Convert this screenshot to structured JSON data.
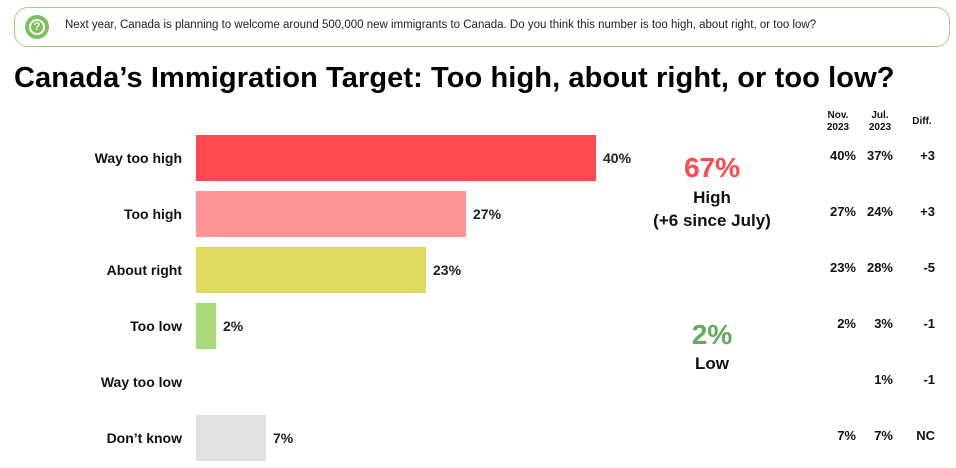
{
  "question": {
    "icon": "question-icon",
    "text": "Next year, Canada is planning to welcome around 500,000 new immigrants to Canada. Do you think this number is too high, about right, or too low?"
  },
  "chart_data": {
    "type": "bar",
    "orientation": "horizontal",
    "title": "Canada’s Immigration Target: Too high, about right, or too low?",
    "categories": [
      "Way too high",
      "Too high",
      "About right",
      "Too low",
      "Way too low",
      "Don’t know"
    ],
    "values": [
      40,
      27,
      23,
      2,
      null,
      7
    ],
    "value_labels": [
      "40%",
      "27%",
      "23%",
      "2%",
      "",
      "7%"
    ],
    "colors": [
      "#ff4b4f",
      "#ff9494",
      "#dcdb5f",
      "#a8d97a",
      "#ffffff",
      "#e0e2e1"
    ],
    "xlim": [
      0,
      100
    ]
  },
  "summary": {
    "high": {
      "value": "67%",
      "label": "High",
      "note": "(+6 since July)",
      "color": "#ff4b4f"
    },
    "low": {
      "value": "2%",
      "label": "Low",
      "color": "#5fac5c"
    }
  },
  "table": {
    "headers": [
      {
        "line1": "Nov.",
        "line2": "2023"
      },
      {
        "line1": "Jul.",
        "line2": "2023"
      },
      {
        "line1": "Diff.",
        "line2": ""
      }
    ],
    "rows": [
      [
        "40%",
        "37%",
        "+3"
      ],
      [
        "27%",
        "24%",
        "+3"
      ],
      [
        "23%",
        "28%",
        "-5"
      ],
      [
        "2%",
        "3%",
        "-1"
      ],
      [
        "",
        "1%",
        "-1"
      ],
      [
        "7%",
        "7%",
        "NC"
      ]
    ]
  }
}
